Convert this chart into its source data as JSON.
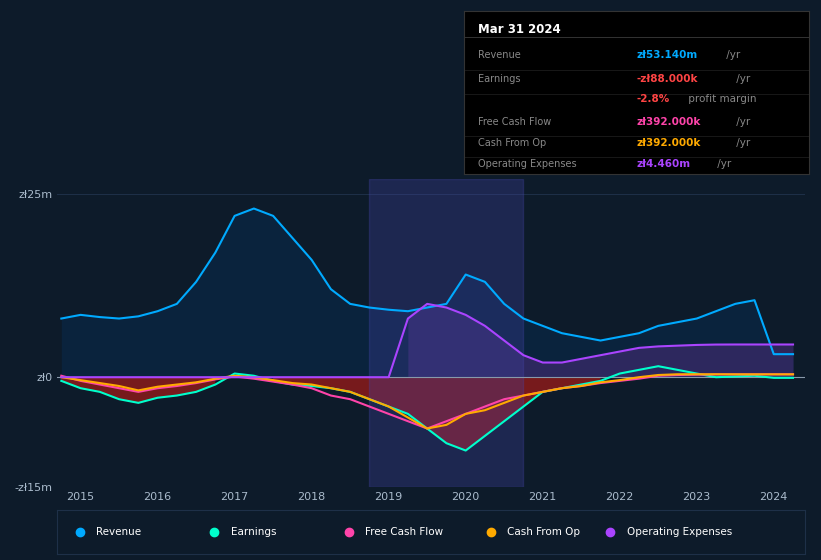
{
  "bg_color": "#0d1b2a",
  "plot_bg_color": "#0d1b2a",
  "grid_color": "#1e3048",
  "zero_line_color": "#8899aa",
  "title": "Mar 31 2024",
  "ylim": [
    -15000000,
    27000000
  ],
  "yticks": [
    -15000000,
    0,
    25000000
  ],
  "ytick_labels": [
    "-zł15m",
    "zł0",
    "zł25m"
  ],
  "xlim": [
    2014.7,
    2024.4
  ],
  "xticks": [
    2015,
    2016,
    2017,
    2018,
    2019,
    2020,
    2021,
    2022,
    2023,
    2024
  ],
  "years": [
    2014.75,
    2015.0,
    2015.25,
    2015.5,
    2015.75,
    2016.0,
    2016.25,
    2016.5,
    2016.75,
    2017.0,
    2017.25,
    2017.5,
    2017.75,
    2018.0,
    2018.25,
    2018.5,
    2018.75,
    2019.0,
    2019.25,
    2019.5,
    2019.75,
    2020.0,
    2020.25,
    2020.5,
    2020.75,
    2021.0,
    2021.25,
    2021.5,
    2021.75,
    2022.0,
    2022.25,
    2022.5,
    2022.75,
    2023.0,
    2023.25,
    2023.5,
    2023.75,
    2024.0,
    2024.25
  ],
  "revenue": [
    8000000,
    8500000,
    8200000,
    8000000,
    8300000,
    9000000,
    10000000,
    13000000,
    17000000,
    22000000,
    23000000,
    22000000,
    19000000,
    16000000,
    12000000,
    10000000,
    9500000,
    9200000,
    9000000,
    9500000,
    10000000,
    14000000,
    13000000,
    10000000,
    8000000,
    7000000,
    6000000,
    5500000,
    5000000,
    5500000,
    6000000,
    7000000,
    7500000,
    8000000,
    9000000,
    10000000,
    10500000,
    3140000,
    3140000
  ],
  "earnings": [
    -500000,
    -1500000,
    -2000000,
    -3000000,
    -3500000,
    -2800000,
    -2500000,
    -2000000,
    -1000000,
    500000,
    200000,
    -500000,
    -1000000,
    -1200000,
    -1500000,
    -2000000,
    -3000000,
    -4000000,
    -5000000,
    -7000000,
    -9000000,
    -10000000,
    -8000000,
    -6000000,
    -4000000,
    -2000000,
    -1500000,
    -1000000,
    -500000,
    500000,
    1000000,
    1500000,
    1000000,
    500000,
    0,
    100000,
    200000,
    -88000,
    -88000
  ],
  "free_cash_flow": [
    200000,
    -500000,
    -1000000,
    -1500000,
    -2000000,
    -1500000,
    -1200000,
    -800000,
    -300000,
    100000,
    -200000,
    -600000,
    -1000000,
    -1500000,
    -2500000,
    -3000000,
    -4000000,
    -5000000,
    -6000000,
    -7000000,
    -6000000,
    -5000000,
    -4000000,
    -3000000,
    -2500000,
    -2000000,
    -1500000,
    -1200000,
    -800000,
    -500000,
    -200000,
    200000,
    300000,
    350000,
    380000,
    390000,
    392000,
    392000,
    392000
  ],
  "cash_from_op": [
    0,
    -400000,
    -800000,
    -1200000,
    -1800000,
    -1300000,
    -1000000,
    -700000,
    -200000,
    200000,
    0,
    -400000,
    -800000,
    -1000000,
    -1500000,
    -2000000,
    -3000000,
    -4000000,
    -5500000,
    -7000000,
    -6500000,
    -5000000,
    -4500000,
    -3500000,
    -2500000,
    -2000000,
    -1500000,
    -1200000,
    -700000,
    -400000,
    0,
    300000,
    400000,
    400000,
    400000,
    392000,
    392000,
    392000,
    392000
  ],
  "op_expenses": [
    0,
    0,
    0,
    0,
    0,
    0,
    0,
    0,
    0,
    0,
    0,
    0,
    0,
    0,
    0,
    0,
    0,
    0,
    8000000,
    10000000,
    9500000,
    8500000,
    7000000,
    5000000,
    3000000,
    2000000,
    2000000,
    2500000,
    3000000,
    3500000,
    4000000,
    4200000,
    4300000,
    4400000,
    4450000,
    4460000,
    4460000,
    4460000,
    4460000
  ],
  "highlight_region": [
    2018.75,
    2020.75
  ],
  "revenue_color": "#00aaff",
  "earnings_color": "#00ffcc",
  "fcf_color": "#ff44aa",
  "cashop_color": "#ffaa00",
  "opex_color": "#aa44ff",
  "revenue_fill": "#0a2540",
  "earnings_fill_neg": "#8b1a1a",
  "op_expenses_fill": "#3a2a6a",
  "legend_items": [
    {
      "label": "Revenue",
      "color": "#00aaff"
    },
    {
      "label": "Earnings",
      "color": "#00ffcc"
    },
    {
      "label": "Free Cash Flow",
      "color": "#ff44aa"
    },
    {
      "label": "Cash From Op",
      "color": "#ffaa00"
    },
    {
      "label": "Operating Expenses",
      "color": "#aa44ff"
    }
  ]
}
